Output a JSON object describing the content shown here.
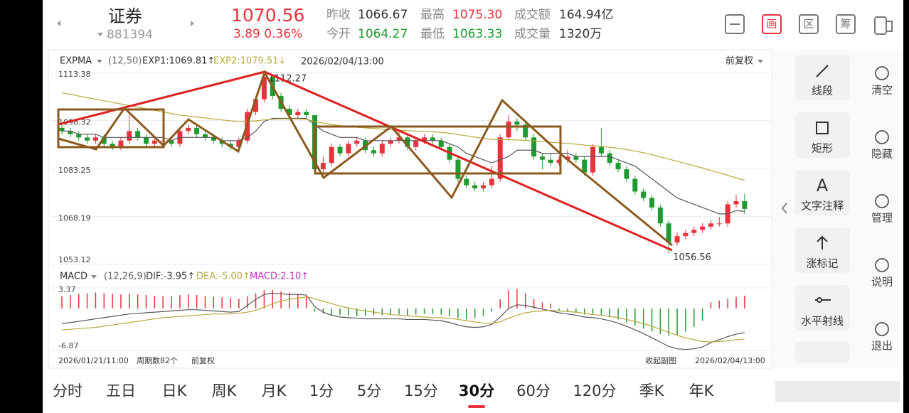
{
  "header": {
    "name": "证券",
    "code": "881394",
    "price": "1070.56",
    "change": "3.89  0.36%",
    "stats": [
      {
        "label": "昨收",
        "value": "1066.67"
      },
      {
        "label": "最高",
        "value": "1075.30"
      },
      {
        "label": "成交额",
        "value": "164.94亿"
      },
      {
        "label": "今开",
        "value": "1064.27"
      },
      {
        "label": "最低",
        "value": "1063.33"
      },
      {
        "label": "成交量",
        "value": "1320万"
      }
    ],
    "icons": [
      "画",
      "区",
      "筹"
    ]
  },
  "chart_data": {
    "type": "candlestick",
    "indicator": "EXPMA",
    "params": "(12,50)",
    "exp1_label": "EXP1:1069.81↑",
    "exp2_label": "EXP2:1079.51↓",
    "time": "2026/02/04/13:00",
    "adjust": "前复权",
    "ylim": [
      1053.12,
      1113.38
    ],
    "yticks": [
      1113.38,
      1098.32,
      1083.25,
      1068.19,
      1053.12
    ],
    "up_color": "#e8323c",
    "down_color": "#1f9a30",
    "candles": [
      [
        1096,
        1097,
        1094,
        1095
      ],
      [
        1095,
        1096,
        1093,
        1094
      ],
      [
        1094,
        1095,
        1092,
        1093
      ],
      [
        1093,
        1094,
        1091,
        1092
      ],
      [
        1092,
        1094,
        1091,
        1093
      ],
      [
        1093,
        1094,
        1090,
        1091
      ],
      [
        1091,
        1092,
        1089,
        1090
      ],
      [
        1090,
        1093,
        1089,
        1092
      ],
      [
        1092,
        1100,
        1091,
        1095
      ],
      [
        1095,
        1096,
        1092,
        1093
      ],
      [
        1093,
        1094,
        1090,
        1091
      ],
      [
        1091,
        1093,
        1090,
        1092
      ],
      [
        1092,
        1093,
        1091,
        1092
      ],
      [
        1092,
        1093,
        1090,
        1091
      ],
      [
        1091,
        1096,
        1090,
        1095
      ],
      [
        1095,
        1097,
        1094,
        1096
      ],
      [
        1096,
        1097,
        1093,
        1094
      ],
      [
        1094,
        1095,
        1092,
        1093
      ],
      [
        1093,
        1094,
        1091,
        1092
      ],
      [
        1092,
        1093,
        1090,
        1091
      ],
      [
        1091,
        1092,
        1089,
        1090
      ],
      [
        1090,
        1093,
        1089,
        1092
      ],
      [
        1092,
        1102,
        1091,
        1101
      ],
      [
        1101,
        1106,
        1100,
        1105
      ],
      [
        1105,
        1112.27,
        1104,
        1112
      ],
      [
        1112,
        1112,
        1105,
        1106
      ],
      [
        1106,
        1107,
        1101,
        1102
      ],
      [
        1102,
        1103,
        1099,
        1100
      ],
      [
        1100,
        1102,
        1099,
        1101
      ],
      [
        1101,
        1102,
        1099,
        1100
      ],
      [
        1100,
        1100,
        1082,
        1083
      ],
      [
        1083,
        1087,
        1082,
        1085
      ],
      [
        1085,
        1091,
        1084,
        1090
      ],
      [
        1090,
        1091,
        1087,
        1088
      ],
      [
        1088,
        1092,
        1087,
        1091
      ],
      [
        1091,
        1093,
        1090,
        1092
      ],
      [
        1092,
        1093,
        1088,
        1089
      ],
      [
        1089,
        1090,
        1087,
        1088
      ],
      [
        1088,
        1092,
        1087,
        1091
      ],
      [
        1091,
        1093,
        1090,
        1092
      ],
      [
        1092,
        1095,
        1091,
        1093
      ],
      [
        1093,
        1094,
        1089,
        1090
      ],
      [
        1090,
        1093,
        1089,
        1092
      ],
      [
        1092,
        1094,
        1091,
        1093
      ],
      [
        1093,
        1094,
        1091,
        1092
      ],
      [
        1092,
        1093,
        1089,
        1090
      ],
      [
        1090,
        1091,
        1085,
        1086
      ],
      [
        1086,
        1087,
        1079,
        1080
      ],
      [
        1080,
        1081,
        1077,
        1078
      ],
      [
        1078,
        1079,
        1076,
        1077
      ],
      [
        1077,
        1079,
        1076,
        1078
      ],
      [
        1078,
        1084,
        1077,
        1080
      ],
      [
        1080,
        1094,
        1079,
        1093
      ],
      [
        1093,
        1100,
        1092,
        1098
      ],
      [
        1098,
        1099,
        1095,
        1097
      ],
      [
        1097,
        1098,
        1092,
        1093
      ],
      [
        1093,
        1094,
        1086,
        1087
      ],
      [
        1087,
        1088,
        1083,
        1086
      ],
      [
        1086,
        1088,
        1084,
        1085
      ],
      [
        1085,
        1087,
        1084,
        1086
      ],
      [
        1086,
        1089,
        1085,
        1087
      ],
      [
        1087,
        1088,
        1085,
        1086
      ],
      [
        1086,
        1087,
        1081,
        1082
      ],
      [
        1082,
        1091,
        1081,
        1090
      ],
      [
        1090,
        1096,
        1087,
        1088
      ],
      [
        1088,
        1089,
        1084,
        1085
      ],
      [
        1085,
        1086,
        1082,
        1083
      ],
      [
        1083,
        1084,
        1079,
        1080
      ],
      [
        1080,
        1081,
        1075,
        1076
      ],
      [
        1076,
        1077,
        1073,
        1074
      ],
      [
        1074,
        1075,
        1070,
        1071
      ],
      [
        1071,
        1072,
        1065,
        1066
      ],
      [
        1066,
        1067,
        1056.56,
        1060
      ],
      [
        1060,
        1063,
        1059,
        1062
      ],
      [
        1062,
        1064,
        1061,
        1063
      ],
      [
        1063,
        1065,
        1062,
        1064
      ],
      [
        1064,
        1066,
        1063,
        1065
      ],
      [
        1065,
        1067,
        1064,
        1066
      ],
      [
        1066,
        1068,
        1065,
        1066
      ],
      [
        1066,
        1073,
        1065,
        1072
      ],
      [
        1072,
        1075,
        1071,
        1073
      ],
      [
        1073,
        1075.3,
        1069,
        1070.56
      ]
    ],
    "series": [
      {
        "color": "#555555",
        "values": [
          1095,
          1095,
          1094,
          1094,
          1094,
          1093,
          1093,
          1093,
          1093,
          1093,
          1093,
          1093,
          1093,
          1092,
          1093,
          1093,
          1093,
          1093,
          1093,
          1092,
          1092,
          1092,
          1093,
          1095,
          1098,
          1099,
          1099,
          1099,
          1099,
          1099,
          1097,
          1095,
          1094,
          1093,
          1093,
          1093,
          1092,
          1092,
          1092,
          1092,
          1092,
          1092,
          1092,
          1092,
          1092,
          1092,
          1091,
          1090,
          1088,
          1087,
          1086,
          1085,
          1086,
          1087,
          1089,
          1089,
          1089,
          1088,
          1088,
          1088,
          1088,
          1087,
          1087,
          1087,
          1087,
          1087,
          1086,
          1085,
          1084,
          1082,
          1080,
          1078,
          1076,
          1074,
          1073,
          1072,
          1071,
          1070,
          1069,
          1069,
          1070,
          1069.81
        ]
      },
      {
        "color": "#b8a83a",
        "values": [
          1107,
          1106.5,
          1106,
          1105.5,
          1105,
          1104.5,
          1104,
          1103.5,
          1103,
          1102.5,
          1102,
          1101.5,
          1101,
          1100.5,
          1100,
          1099.7,
          1099.4,
          1099.1,
          1098.8,
          1098.5,
          1098.2,
          1098,
          1098,
          1098.2,
          1098.5,
          1098.7,
          1098.8,
          1098.8,
          1098.8,
          1098.7,
          1098,
          1097.5,
          1097,
          1096.7,
          1096.4,
          1096.2,
          1096,
          1095.8,
          1095.6,
          1095.4,
          1095.3,
          1095.1,
          1095,
          1094.9,
          1094.8,
          1094.6,
          1094.3,
          1093.9,
          1093.5,
          1093.1,
          1092.7,
          1092.4,
          1092.3,
          1092.3,
          1092.2,
          1092.1,
          1091.9,
          1091.7,
          1091.5,
          1091.3,
          1091.1,
          1090.9,
          1090.6,
          1090.4,
          1090.2,
          1089.9,
          1089.6,
          1089.2,
          1088.7,
          1088.2,
          1087.6,
          1086.9,
          1086.2,
          1085.5,
          1084.8,
          1084.1,
          1083.4,
          1082.6,
          1081.9,
          1081.1,
          1080.3,
          1079.51
        ]
      }
    ],
    "annotations": [
      {
        "label": "1112.27",
        "index": 24
      },
      {
        "label": "1056.56",
        "index": 72
      }
    ]
  },
  "macd": {
    "type": "bar",
    "indicator": "MACD",
    "params": "(12,26,9)",
    "dif_label": "DIF:-3.95↑",
    "dea_label": "DEA:-5.00↑",
    "macd_label": "MACD:2.10↑",
    "ylim": [
      -6.87,
      3.37
    ],
    "yticks": [
      3.37,
      -6.87
    ],
    "values": [
      2,
      2.2,
      2.4,
      2.5,
      2.6,
      2.5,
      2.4,
      2.3,
      2.4,
      2.3,
      2.2,
      2.1,
      2,
      2,
      2.2,
      2.3,
      2.2,
      2,
      1.9,
      1.8,
      1.7,
      1.6,
      2,
      2.5,
      3,
      3,
      2.8,
      2.6,
      2.4,
      2,
      -0.5,
      -0.8,
      -1,
      -1.1,
      -1.2,
      -1.3,
      -1.2,
      -1.1,
      -1.1,
      -1,
      -1,
      -1.1,
      -1,
      -0.9,
      -0.9,
      -1,
      -1.3,
      -1.6,
      -1.8,
      -1.6,
      -1.2,
      -0.5,
      1.5,
      3,
      3.2,
      2.5,
      1.5,
      1,
      0.8,
      -0.3,
      -0.5,
      -0.7,
      -1,
      -0.9,
      -1.1,
      -1.4,
      -1.8,
      -2.3,
      -2.8,
      -3.3,
      -3.8,
      -4.2,
      -4.5,
      -4.3,
      -3.8,
      -3,
      -2,
      1,
      1.3,
      1.6,
      1.9,
      2.1
    ],
    "series": [
      {
        "color": "#555555",
        "values": [
          -2.5,
          -2.3,
          -2.1,
          -1.9,
          -1.7,
          -1.5,
          -1.3,
          -1.1,
          -0.9,
          -0.8,
          -0.7,
          -0.6,
          -0.5,
          -0.4,
          -0.3,
          -0.2,
          -0.2,
          -0.3,
          -0.4,
          -0.5,
          -0.6,
          -0.5,
          0.5,
          1.5,
          2.3,
          2.5,
          2.4,
          2.3,
          2.3,
          2.2,
          0.3,
          -0.6,
          -1.1,
          -1.4,
          -1.5,
          -1.6,
          -1.7,
          -1.7,
          -1.7,
          -1.7,
          -1.7,
          -1.8,
          -1.8,
          -1.8,
          -1.9,
          -2,
          -2.3,
          -2.7,
          -3,
          -3.1,
          -3,
          -2.6,
          -1.4,
          0,
          0.6,
          0.5,
          0.2,
          -0.1,
          -0.4,
          -0.7,
          -0.9,
          -1.1,
          -1.4,
          -1.5,
          -1.7,
          -2,
          -2.4,
          -2.9,
          -3.5,
          -4.1,
          -4.8,
          -5.5,
          -6.2,
          -6.6,
          -6.7,
          -6.6,
          -6.3,
          -5.6,
          -5.1,
          -4.6,
          -4.2,
          -3.95
        ]
      },
      {
        "color": "#b8a83a",
        "values": [
          -3.5,
          -3.4,
          -3.3,
          -3.2,
          -3.1,
          -2.9,
          -2.7,
          -2.5,
          -2.3,
          -2.1,
          -1.9,
          -1.7,
          -1.5,
          -1.4,
          -1.3,
          -1.2,
          -1.1,
          -1,
          -0.9,
          -0.9,
          -0.9,
          -0.8,
          -0.6,
          -0.3,
          0.2,
          0.8,
          1.2,
          1.5,
          1.7,
          1.9,
          1.6,
          1.2,
          0.8,
          0.4,
          0.1,
          -0.2,
          -0.4,
          -0.6,
          -0.8,
          -1,
          -1.1,
          -1.2,
          -1.3,
          -1.4,
          -1.5,
          -1.5,
          -1.6,
          -1.8,
          -2,
          -2.2,
          -2.4,
          -2.4,
          -2.2,
          -1.6,
          -1.1,
          -0.7,
          -0.5,
          -0.4,
          -0.3,
          -0.4,
          -0.5,
          -0.6,
          -0.8,
          -1,
          -1.1,
          -1.3,
          -1.5,
          -1.8,
          -2.1,
          -2.5,
          -2.9,
          -3.4,
          -3.9,
          -4.4,
          -4.8,
          -5.1,
          -5.4,
          -5.5,
          -5.4,
          -5.3,
          -5.1,
          -5
        ]
      }
    ]
  },
  "footer": {
    "start": "2026/01/21/11:00",
    "count": "周期数82个",
    "adjust": "前复权",
    "collapse": "收起副图",
    "end": "2026/02/04/13:00"
  },
  "tools": [
    "线段",
    "矩形",
    "文字注释",
    "涨标记",
    "水平射线"
  ],
  "side": [
    "清空",
    "隐藏",
    "管理",
    "说明",
    "退出"
  ],
  "tabs": [
    "分时",
    "五日",
    "日K",
    "周K",
    "月K",
    "1分",
    "5分",
    "15分",
    "30分",
    "60分",
    "120分",
    "季K",
    "年K"
  ],
  "active_tab": 8
}
